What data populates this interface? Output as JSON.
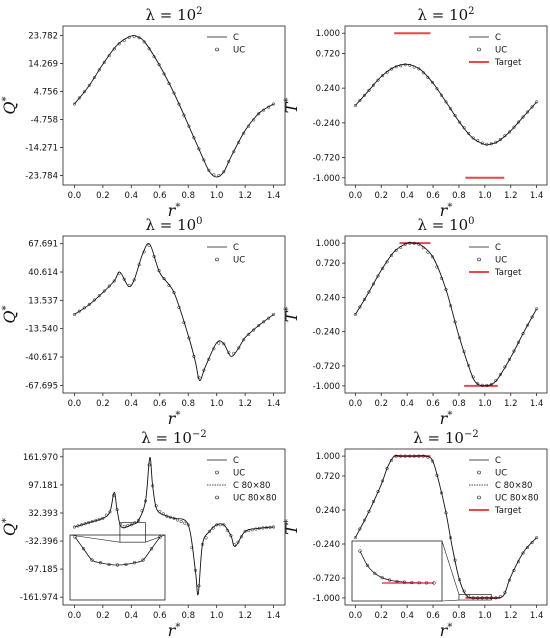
{
  "chart_data": [
    {
      "type": "line",
      "panel": "Q-lambda-1e2",
      "title_base": "λ = 10",
      "title_exp": "2",
      "xlabel_base": "r",
      "xlabel_sup": "*",
      "ylabel_base": "Q",
      "ylabel_sup": "*",
      "xticks": [
        "0.0",
        "0.2",
        "0.4",
        "0.6",
        "0.8",
        "1.0",
        "1.2",
        "1.4"
      ],
      "yticks": [
        "23.782",
        "14.269",
        "4.756",
        "-4.758",
        "-14.271",
        "-23.784"
      ],
      "xlim": [
        -0.08,
        1.48
      ],
      "ylim": [
        -27,
        27
      ],
      "legend": [
        "C",
        "UC"
      ],
      "series": [
        {
          "name": "C",
          "x": [
            0.0,
            0.1,
            0.2,
            0.3,
            0.4,
            0.45,
            0.5,
            0.6,
            0.7,
            0.8,
            0.9,
            0.95,
            1.0,
            1.05,
            1.1,
            1.2,
            1.3,
            1.4
          ],
          "y": [
            0.5,
            6.5,
            14.0,
            20.5,
            23.6,
            23.2,
            21.2,
            13.5,
            4.2,
            -6.5,
            -17.5,
            -22.5,
            -24.3,
            -22.5,
            -17.5,
            -8.5,
            -2.5,
            0.5
          ]
        }
      ]
    },
    {
      "type": "line",
      "panel": "T-lambda-1e2",
      "title_base": "λ = 10",
      "title_exp": "2",
      "xlabel_base": "r",
      "xlabel_sup": "*",
      "ylabel_base": "T",
      "ylabel_sup": "*",
      "xticks": [
        "0.0",
        "0.2",
        "0.4",
        "0.6",
        "0.8",
        "1.0",
        "1.2",
        "1.4"
      ],
      "yticks": [
        "1.000",
        "0.720",
        "0.240",
        "-0.240",
        "-0.720",
        "-1.000"
      ],
      "xlim": [
        -0.08,
        1.48
      ],
      "ylim": [
        -1.1,
        1.1
      ],
      "legend": [
        "C",
        "UC",
        "Target"
      ],
      "series": [
        {
          "name": "C",
          "x": [
            0.0,
            0.1,
            0.2,
            0.3,
            0.4,
            0.5,
            0.6,
            0.7,
            0.8,
            0.9,
            1.0,
            1.05,
            1.1,
            1.2,
            1.3,
            1.4
          ],
          "y": [
            0.0,
            0.2,
            0.4,
            0.53,
            0.57,
            0.5,
            0.31,
            0.05,
            -0.22,
            -0.44,
            -0.54,
            -0.53,
            -0.5,
            -0.35,
            -0.15,
            0.05
          ]
        },
        {
          "name": "Target",
          "segments": [
            [
              0.3,
              0.58,
              1.0
            ],
            [
              0.85,
              1.15,
              -1.0
            ]
          ]
        }
      ]
    },
    {
      "type": "line",
      "panel": "Q-lambda-1e0",
      "title_base": "λ = 10",
      "title_exp": "0",
      "xlabel_base": "r",
      "xlabel_sup": "*",
      "ylabel_base": "Q",
      "ylabel_sup": "*",
      "xticks": [
        "0.0",
        "0.2",
        "0.4",
        "0.6",
        "0.8",
        "1.0",
        "1.2",
        "1.4"
      ],
      "yticks": [
        "67.691",
        "40.614",
        "13.537",
        "-13.540",
        "-40.617",
        "-67.695"
      ],
      "xlim": [
        -0.08,
        1.48
      ],
      "ylim": [
        -75,
        75
      ],
      "legend": [
        "C",
        "UC"
      ],
      "series": [
        {
          "name": "C",
          "x": [
            0.0,
            0.1,
            0.2,
            0.28,
            0.32,
            0.38,
            0.42,
            0.48,
            0.53,
            0.6,
            0.7,
            0.8,
            0.85,
            0.88,
            0.92,
            1.0,
            1.05,
            1.1,
            1.15,
            1.2,
            1.3,
            1.4
          ],
          "y": [
            0.0,
            9.0,
            21.0,
            32.0,
            40.5,
            27.0,
            33.0,
            58.0,
            67.0,
            40.0,
            21.0,
            -20.0,
            -45.0,
            -63.0,
            -50.0,
            -27.0,
            -28.0,
            -40.0,
            -33.0,
            -22.0,
            -10.0,
            0.0
          ]
        }
      ]
    },
    {
      "type": "line",
      "panel": "T-lambda-1e0",
      "title_base": "λ = 10",
      "title_exp": "0",
      "xlabel_base": "r",
      "xlabel_sup": "*",
      "ylabel_base": "T",
      "ylabel_sup": "*",
      "xticks": [
        "0.0",
        "0.2",
        "0.4",
        "0.6",
        "0.8",
        "1.0",
        "1.2",
        "1.4"
      ],
      "yticks": [
        "1.000",
        "0.720",
        "0.240",
        "-0.240",
        "-0.720",
        "-1.000"
      ],
      "xlim": [
        -0.08,
        1.48
      ],
      "ylim": [
        -1.1,
        1.1
      ],
      "legend": [
        "C",
        "UC",
        "Target"
      ],
      "series": [
        {
          "name": "C",
          "x": [
            0.0,
            0.1,
            0.2,
            0.3,
            0.4,
            0.45,
            0.5,
            0.6,
            0.7,
            0.8,
            0.9,
            0.95,
            1.0,
            1.05,
            1.1,
            1.2,
            1.3,
            1.4
          ],
          "y": [
            0.0,
            0.3,
            0.62,
            0.88,
            1.0,
            1.0,
            0.98,
            0.8,
            0.35,
            -0.3,
            -0.85,
            -0.98,
            -1.0,
            -0.98,
            -0.9,
            -0.6,
            -0.25,
            0.08
          ]
        },
        {
          "name": "Target",
          "segments": [
            [
              0.34,
              0.58,
              1.0
            ],
            [
              0.84,
              1.1,
              -1.0
            ]
          ]
        }
      ]
    },
    {
      "type": "line",
      "panel": "Q-lambda-1e-2",
      "title_base": "λ = 10",
      "title_exp": "−2",
      "xlabel_base": "r",
      "xlabel_sup": "*",
      "ylabel_base": "Q",
      "ylabel_sup": "*",
      "xticks": [
        "0.0",
        "0.2",
        "0.4",
        "0.6",
        "0.8",
        "1.0",
        "1.2",
        "1.4"
      ],
      "yticks": [
        "161.970",
        "97.181",
        "32.393",
        "-32.396",
        "-97.185",
        "-161.974"
      ],
      "xlim": [
        -0.08,
        1.48
      ],
      "ylim": [
        -180,
        180
      ],
      "legend": [
        "C",
        "UC",
        "C 80×80",
        "UC 80×80"
      ],
      "series": [
        {
          "name": "C",
          "x": [
            0.0,
            0.1,
            0.2,
            0.25,
            0.28,
            0.3,
            0.33,
            0.4,
            0.45,
            0.5,
            0.53,
            0.55,
            0.58,
            0.65,
            0.7,
            0.8,
            0.85,
            0.87,
            0.9,
            0.95,
            1.0,
            1.05,
            1.1,
            1.13,
            1.2,
            1.3,
            1.4
          ],
          "y": [
            0.0,
            10.0,
            20.0,
            35.0,
            80.0,
            40.0,
            0.0,
            5.0,
            15.0,
            60.0,
            160.0,
            95.0,
            40.0,
            25.0,
            20.0,
            5.0,
            -100.0,
            -155.0,
            -40.0,
            -10.0,
            5.0,
            5.0,
            -20.0,
            -45.0,
            -10.0,
            -3.0,
            0.0
          ]
        }
      ]
    },
    {
      "type": "line",
      "panel": "T-lambda-1e-2",
      "title_base": "λ = 10",
      "title_exp": "−2",
      "xlabel_base": "r",
      "xlabel_sup": "*",
      "ylabel_base": "T",
      "ylabel_sup": "*",
      "xticks": [
        "0.0",
        "0.2",
        "0.4",
        "0.6",
        "0.8",
        "1.0",
        "1.2",
        "1.4"
      ],
      "yticks": [
        "1.000",
        "0.720",
        "0.240",
        "-0.240",
        "-0.720",
        "-1.000"
      ],
      "xlim": [
        -0.08,
        1.48
      ],
      "ylim": [
        -1.1,
        1.1
      ],
      "legend": [
        "C",
        "UC",
        "C 80×80",
        "UC 80×80",
        "Target"
      ],
      "series": [
        {
          "name": "C",
          "x": [
            0.0,
            0.1,
            0.2,
            0.25,
            0.3,
            0.35,
            0.45,
            0.55,
            0.6,
            0.65,
            0.7,
            0.75,
            0.8,
            0.85,
            0.9,
            1.0,
            1.1,
            1.15,
            1.2,
            1.3,
            1.4
          ],
          "y": [
            -0.15,
            0.2,
            0.6,
            0.85,
            1.0,
            1.0,
            1.0,
            1.0,
            0.92,
            0.6,
            0.2,
            -0.3,
            -0.72,
            -0.95,
            -1.0,
            -1.0,
            -1.0,
            -0.95,
            -0.7,
            -0.35,
            -0.15
          ]
        },
        {
          "name": "Target",
          "segments": [
            [
              0.3,
              0.58,
              1.0
            ],
            [
              0.85,
              1.12,
              -1.0
            ]
          ]
        }
      ]
    }
  ]
}
